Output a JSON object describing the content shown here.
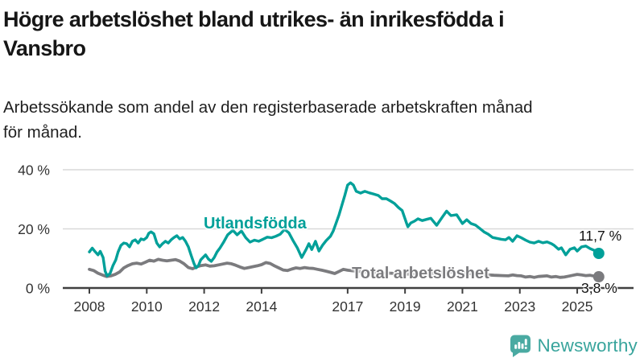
{
  "header": {
    "title_lines": [
      "Högre arbetslöshet bland utrikes- än inrikesfödda i",
      "Vansbro"
    ],
    "subtitle_lines": [
      "Arbetssökande som andel av den registerbaserade arbetskraften månad",
      "för månad."
    ]
  },
  "chart_data": {
    "type": "line",
    "title": "Högre arbetslöshet bland utrikes- än inrikesfödda i Vansbro",
    "subtitle": "Arbetssökande som andel av den registerbaserade arbetskraften månad för månad.",
    "unit": "%",
    "grid": true,
    "legend_position": "inline-labels",
    "x_axis": {
      "range": [
        2008,
        2025.95
      ],
      "ticks": [
        {
          "value": 2008,
          "label": "2008"
        },
        {
          "value": 2010,
          "label": "2010"
        },
        {
          "value": 2012,
          "label": "2012"
        },
        {
          "value": 2014,
          "label": "2014"
        },
        {
          "value": 2017,
          "label": "2017"
        },
        {
          "value": 2019,
          "label": "2019"
        },
        {
          "value": 2021,
          "label": "2021"
        },
        {
          "value": 2023,
          "label": "2023"
        },
        {
          "value": 2025,
          "label": "2025"
        }
      ]
    },
    "y_axis": {
      "range": [
        0,
        42
      ],
      "ticks": [
        {
          "value": 0,
          "label": "0 %"
        },
        {
          "value": 20,
          "label": "20 %"
        },
        {
          "value": 40,
          "label": "40 %"
        }
      ]
    },
    "series": [
      {
        "name": "Utlandsfödda",
        "color": "#00a099",
        "end_value": 11.7,
        "end_label": "11,7 %",
        "points": [
          [
            2008.0,
            12.2
          ],
          [
            2008.1,
            13.5
          ],
          [
            2008.2,
            12.3
          ],
          [
            2008.3,
            11.2
          ],
          [
            2008.38,
            12.4
          ],
          [
            2008.48,
            10.3
          ],
          [
            2008.55,
            5.7
          ],
          [
            2008.62,
            4.1
          ],
          [
            2008.72,
            4.9
          ],
          [
            2008.82,
            7.5
          ],
          [
            2008.92,
            9.5
          ],
          [
            2009.0,
            12.2
          ],
          [
            2009.1,
            14.4
          ],
          [
            2009.2,
            15.2
          ],
          [
            2009.3,
            15.0
          ],
          [
            2009.4,
            13.9
          ],
          [
            2009.5,
            15.8
          ],
          [
            2009.6,
            16.3
          ],
          [
            2009.7,
            15.2
          ],
          [
            2009.8,
            16.6
          ],
          [
            2009.9,
            16.3
          ],
          [
            2010.0,
            17.1
          ],
          [
            2010.07,
            18.5
          ],
          [
            2010.15,
            19.0
          ],
          [
            2010.25,
            18.3
          ],
          [
            2010.35,
            15.2
          ],
          [
            2010.45,
            13.9
          ],
          [
            2010.55,
            15.0
          ],
          [
            2010.65,
            15.8
          ],
          [
            2010.75,
            15.2
          ],
          [
            2010.85,
            16.3
          ],
          [
            2010.95,
            17.1
          ],
          [
            2011.05,
            17.7
          ],
          [
            2011.15,
            16.6
          ],
          [
            2011.25,
            17.1
          ],
          [
            2011.35,
            15.8
          ],
          [
            2011.45,
            13.9
          ],
          [
            2011.55,
            10.9
          ],
          [
            2011.65,
            8.2
          ],
          [
            2011.72,
            6.8
          ],
          [
            2011.8,
            7.6
          ],
          [
            2011.88,
            9.5
          ],
          [
            2011.96,
            10.3
          ],
          [
            2012.05,
            11.2
          ],
          [
            2012.15,
            9.8
          ],
          [
            2012.25,
            9.0
          ],
          [
            2012.35,
            10.3
          ],
          [
            2012.45,
            12.2
          ],
          [
            2012.55,
            13.5
          ],
          [
            2012.68,
            15.5
          ],
          [
            2012.82,
            18.0
          ],
          [
            2013.0,
            19.5
          ],
          [
            2013.15,
            18.0
          ],
          [
            2013.3,
            19.3
          ],
          [
            2013.45,
            17.0
          ],
          [
            2013.6,
            15.5
          ],
          [
            2013.75,
            16.2
          ],
          [
            2013.9,
            15.8
          ],
          [
            2014.05,
            16.5
          ],
          [
            2014.2,
            17.2
          ],
          [
            2014.35,
            17.0
          ],
          [
            2014.5,
            17.5
          ],
          [
            2014.65,
            18.2
          ],
          [
            2014.8,
            19.8
          ],
          [
            2014.95,
            18.7
          ],
          [
            2015.1,
            16.0
          ],
          [
            2015.25,
            13.5
          ],
          [
            2015.4,
            10.3
          ],
          [
            2015.55,
            13.0
          ],
          [
            2015.65,
            15.0
          ],
          [
            2015.75,
            13.0
          ],
          [
            2015.88,
            15.8
          ],
          [
            2016.0,
            12.5
          ],
          [
            2016.12,
            14.4
          ],
          [
            2016.25,
            16.0
          ],
          [
            2016.4,
            17.5
          ],
          [
            2016.5,
            19.3
          ],
          [
            2016.6,
            22.0
          ],
          [
            2016.7,
            24.8
          ],
          [
            2016.8,
            28.0
          ],
          [
            2016.9,
            31.3
          ],
          [
            2017.0,
            34.8
          ],
          [
            2017.1,
            35.6
          ],
          [
            2017.2,
            34.8
          ],
          [
            2017.3,
            32.7
          ],
          [
            2017.45,
            32.1
          ],
          [
            2017.6,
            32.7
          ],
          [
            2017.75,
            32.2
          ],
          [
            2017.9,
            31.8
          ],
          [
            2018.07,
            31.3
          ],
          [
            2018.2,
            30.2
          ],
          [
            2018.35,
            30.2
          ],
          [
            2018.5,
            29.4
          ],
          [
            2018.63,
            28.6
          ],
          [
            2018.77,
            27.2
          ],
          [
            2018.9,
            26.2
          ],
          [
            2019.05,
            22.0
          ],
          [
            2019.1,
            20.7
          ],
          [
            2019.2,
            22.0
          ],
          [
            2019.33,
            22.6
          ],
          [
            2019.45,
            23.4
          ],
          [
            2019.6,
            22.8
          ],
          [
            2019.75,
            23.2
          ],
          [
            2019.9,
            23.6
          ],
          [
            2020.0,
            22.4
          ],
          [
            2020.1,
            21.2
          ],
          [
            2020.3,
            24.0
          ],
          [
            2020.45,
            26.0
          ],
          [
            2020.6,
            24.5
          ],
          [
            2020.8,
            24.8
          ],
          [
            2021.0,
            21.8
          ],
          [
            2021.15,
            23.1
          ],
          [
            2021.3,
            21.8
          ],
          [
            2021.45,
            21.3
          ],
          [
            2021.6,
            20.2
          ],
          [
            2021.75,
            19.0
          ],
          [
            2021.9,
            18.2
          ],
          [
            2022.05,
            17.1
          ],
          [
            2022.2,
            16.8
          ],
          [
            2022.35,
            16.5
          ],
          [
            2022.5,
            16.3
          ],
          [
            2022.62,
            17.1
          ],
          [
            2022.75,
            15.8
          ],
          [
            2022.9,
            17.7
          ],
          [
            2023.05,
            17.0
          ],
          [
            2023.2,
            16.2
          ],
          [
            2023.35,
            15.5
          ],
          [
            2023.5,
            15.2
          ],
          [
            2023.65,
            15.8
          ],
          [
            2023.8,
            15.3
          ],
          [
            2023.95,
            15.6
          ],
          [
            2024.1,
            15.0
          ],
          [
            2024.2,
            14.4
          ],
          [
            2024.35,
            13.1
          ],
          [
            2024.45,
            13.6
          ],
          [
            2024.6,
            11.2
          ],
          [
            2024.75,
            13.1
          ],
          [
            2024.9,
            13.6
          ],
          [
            2025.0,
            12.5
          ],
          [
            2025.15,
            13.9
          ],
          [
            2025.3,
            14.2
          ],
          [
            2025.45,
            13.3
          ],
          [
            2025.6,
            12.7
          ],
          [
            2025.75,
            11.7
          ]
        ]
      },
      {
        "name": "Total arbetslöshet",
        "color": "#7b7b7e",
        "end_value": 3.8,
        "end_label": "3,8 %",
        "points": [
          [
            2008.0,
            6.3
          ],
          [
            2008.15,
            5.9
          ],
          [
            2008.3,
            5.0
          ],
          [
            2008.45,
            4.4
          ],
          [
            2008.6,
            3.9
          ],
          [
            2008.75,
            4.1
          ],
          [
            2008.9,
            4.6
          ],
          [
            2009.05,
            5.4
          ],
          [
            2009.2,
            6.8
          ],
          [
            2009.35,
            7.6
          ],
          [
            2009.5,
            8.2
          ],
          [
            2009.65,
            8.4
          ],
          [
            2009.8,
            8.1
          ],
          [
            2009.95,
            8.7
          ],
          [
            2010.1,
            9.4
          ],
          [
            2010.25,
            9.1
          ],
          [
            2010.4,
            9.7
          ],
          [
            2010.55,
            9.4
          ],
          [
            2010.7,
            9.2
          ],
          [
            2010.85,
            9.4
          ],
          [
            2011.0,
            9.6
          ],
          [
            2011.15,
            9.1
          ],
          [
            2011.3,
            8.2
          ],
          [
            2011.45,
            6.9
          ],
          [
            2011.6,
            6.5
          ],
          [
            2011.75,
            7.2
          ],
          [
            2011.9,
            7.6
          ],
          [
            2012.05,
            7.8
          ],
          [
            2012.2,
            7.4
          ],
          [
            2012.35,
            7.5
          ],
          [
            2012.5,
            7.8
          ],
          [
            2012.65,
            8.1
          ],
          [
            2012.8,
            8.4
          ],
          [
            2012.95,
            8.2
          ],
          [
            2013.1,
            7.7
          ],
          [
            2013.25,
            7.1
          ],
          [
            2013.4,
            6.6
          ],
          [
            2013.55,
            6.9
          ],
          [
            2013.7,
            7.2
          ],
          [
            2013.85,
            7.5
          ],
          [
            2014.0,
            7.9
          ],
          [
            2014.15,
            8.6
          ],
          [
            2014.3,
            8.3
          ],
          [
            2014.45,
            7.5
          ],
          [
            2014.6,
            6.8
          ],
          [
            2014.75,
            6.1
          ],
          [
            2014.9,
            5.9
          ],
          [
            2015.05,
            6.4
          ],
          [
            2015.2,
            6.8
          ],
          [
            2015.35,
            6.6
          ],
          [
            2015.5,
            6.9
          ],
          [
            2015.65,
            6.7
          ],
          [
            2015.8,
            6.6
          ],
          [
            2015.95,
            6.3
          ],
          [
            2016.1,
            6.0
          ],
          [
            2016.25,
            5.7
          ],
          [
            2016.4,
            5.3
          ],
          [
            2016.55,
            4.9
          ],
          [
            2016.7,
            5.6
          ],
          [
            2016.85,
            6.3
          ],
          [
            2017.0,
            6.0
          ],
          [
            2017.3,
            5.7
          ],
          [
            2017.6,
            5.5
          ],
          [
            2017.9,
            5.3
          ],
          [
            2018.2,
            5.1
          ],
          [
            2018.5,
            5.0
          ],
          [
            2018.8,
            4.8
          ],
          [
            2019.1,
            4.7
          ],
          [
            2019.4,
            4.6
          ],
          [
            2019.7,
            4.7
          ],
          [
            2020.0,
            5.0
          ],
          [
            2020.3,
            5.5
          ],
          [
            2020.6,
            5.4
          ],
          [
            2020.9,
            5.2
          ],
          [
            2021.2,
            4.9
          ],
          [
            2021.5,
            4.7
          ],
          [
            2021.8,
            4.5
          ],
          [
            2022.1,
            4.3
          ],
          [
            2022.4,
            4.2
          ],
          [
            2022.6,
            4.1
          ],
          [
            2022.75,
            4.4
          ],
          [
            2022.9,
            4.2
          ],
          [
            2023.05,
            4.1
          ],
          [
            2023.2,
            3.7
          ],
          [
            2023.35,
            3.9
          ],
          [
            2023.5,
            3.6
          ],
          [
            2023.65,
            3.9
          ],
          [
            2023.8,
            4.0
          ],
          [
            2023.95,
            4.1
          ],
          [
            2024.1,
            3.7
          ],
          [
            2024.25,
            3.9
          ],
          [
            2024.4,
            3.6
          ],
          [
            2024.55,
            3.7
          ],
          [
            2024.7,
            4.0
          ],
          [
            2024.85,
            4.3
          ],
          [
            2025.0,
            4.6
          ],
          [
            2025.15,
            4.4
          ],
          [
            2025.3,
            4.2
          ],
          [
            2025.45,
            4.3
          ],
          [
            2025.6,
            4.0
          ],
          [
            2025.75,
            3.8
          ]
        ]
      }
    ],
    "colors": {
      "grid": "#d9d9d9",
      "axis": "#404040",
      "tick_label": "#333333",
      "value_label": "#111111"
    }
  },
  "footer": {
    "brand": "Newsworthy",
    "brand_color": "#38a49c",
    "logo_icon": "newsworthy-speech-bubble-chart-icon"
  }
}
